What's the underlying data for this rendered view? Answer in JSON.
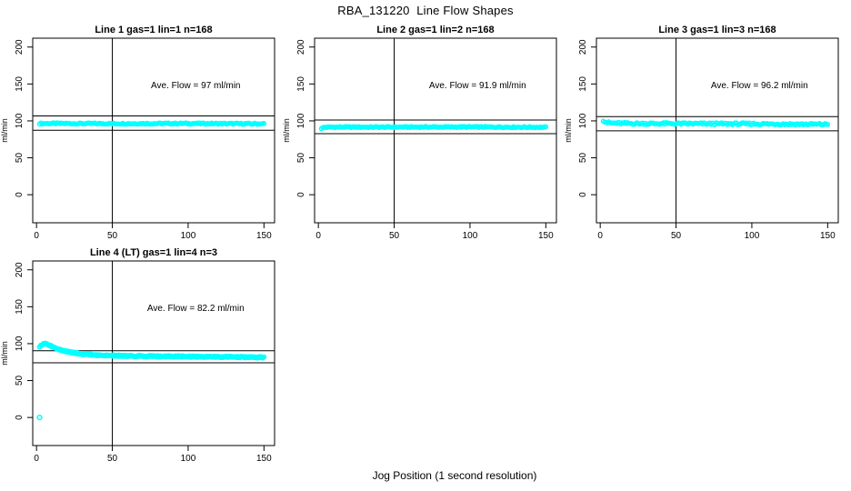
{
  "page": {
    "title": "RBA_131220  Line Flow Shapes",
    "xlabel": "Jog Position (1 second resolution)"
  },
  "colors": {
    "points": "#00ffff",
    "axis": "#000000",
    "text": "#000000",
    "background": "#ffffff"
  },
  "chart_data": [
    {
      "type": "scatter",
      "title": "Line 1 gas=1 lin=1 n=168",
      "line": 1,
      "gas": 1,
      "lin": 1,
      "n": 168,
      "annotation": "Ave. Flow =  97  ml/min",
      "avg_flow_ml_min": 97,
      "ylabel": "ml/min",
      "xticks": [
        0,
        50,
        100,
        150
      ],
      "yticks": [
        0,
        50,
        100,
        150,
        200
      ],
      "xlim": [
        -2.5,
        157
      ],
      "ylim": [
        -38,
        212
      ],
      "vline_x": 50,
      "hlines_y": [
        106.7,
        87.3
      ],
      "annotation_xy": [
        105,
        144
      ],
      "band_profile": [
        [
          2,
          96.5
        ],
        [
          10,
          96.5
        ],
        [
          50,
          96.3
        ],
        [
          100,
          96.5
        ],
        [
          150,
          96.0
        ]
      ],
      "outliers": [],
      "point_count": 168,
      "runs": 1,
      "jitter": 0.9,
      "grid_position": [
        0,
        0
      ]
    },
    {
      "type": "scatter",
      "title": "Line 2 gas=1 lin=2 n=168",
      "line": 2,
      "gas": 1,
      "lin": 2,
      "n": 168,
      "annotation": "Ave. Flow =  91.9  ml/min",
      "avg_flow_ml_min": 91.9,
      "ylabel": "ml/min",
      "xticks": [
        0,
        50,
        100,
        150
      ],
      "yticks": [
        0,
        50,
        100,
        150,
        200
      ],
      "xlim": [
        -2.5,
        157
      ],
      "ylim": [
        -38,
        212
      ],
      "vline_x": 50,
      "hlines_y": [
        101.1,
        82.7
      ],
      "annotation_xy": [
        105,
        144
      ],
      "band_profile": [
        [
          2,
          90.0
        ],
        [
          4,
          91.3
        ],
        [
          10,
          91.6
        ],
        [
          50,
          91.6
        ],
        [
          100,
          91.8
        ],
        [
          150,
          91.3
        ]
      ],
      "outliers": [],
      "point_count": 168,
      "runs": 1,
      "jitter": 0.8,
      "grid_position": [
        0,
        1
      ]
    },
    {
      "type": "scatter",
      "title": "Line 3 gas=1 lin=3 n=168",
      "line": 3,
      "gas": 1,
      "lin": 3,
      "n": 168,
      "annotation": "Ave. Flow =  96.2  ml/min",
      "avg_flow_ml_min": 96.2,
      "ylabel": "ml/min",
      "xticks": [
        0,
        50,
        100,
        150
      ],
      "yticks": [
        0,
        50,
        100,
        150,
        200
      ],
      "xlim": [
        -2.5,
        157
      ],
      "ylim": [
        -38,
        212
      ],
      "vline_x": 50,
      "hlines_y": [
        105.8,
        86.6
      ],
      "annotation_xy": [
        105,
        144
      ],
      "band_profile": [
        [
          2,
          101.0
        ],
        [
          4,
          98.0
        ],
        [
          8,
          97.0
        ],
        [
          20,
          96.5
        ],
        [
          60,
          96.2
        ],
        [
          100,
          96.0
        ],
        [
          150,
          95.3
        ]
      ],
      "outliers": [],
      "point_count": 168,
      "runs": 1,
      "jitter": 1.4,
      "grid_position": [
        0,
        2
      ]
    },
    {
      "type": "scatter",
      "title": "Line 4 (LT) gas=1 lin=4 n=3",
      "line": 4,
      "gas": 1,
      "lin": 4,
      "n": 3,
      "annotation": "Ave. Flow =  82.2  ml/min",
      "avg_flow_ml_min": 82.2,
      "ylabel": "ml/min",
      "xticks": [
        0,
        50,
        100,
        150
      ],
      "yticks": [
        0,
        50,
        100,
        150,
        200
      ],
      "xlim": [
        -2.5,
        157
      ],
      "ylim": [
        -38,
        212
      ],
      "vline_x": 50,
      "hlines_y": [
        90.4,
        74.0
      ],
      "annotation_xy": [
        105,
        144
      ],
      "band_profile": [
        [
          2,
          96.0
        ],
        [
          4,
          99.0
        ],
        [
          6,
          100.0
        ],
        [
          9,
          97.5
        ],
        [
          12,
          94.5
        ],
        [
          16,
          91.5
        ],
        [
          20,
          89.5
        ],
        [
          25,
          87.5
        ],
        [
          30,
          86.0
        ],
        [
          40,
          84.5
        ],
        [
          55,
          83.5
        ],
        [
          75,
          83.0
        ],
        [
          100,
          82.5
        ],
        [
          125,
          82.0
        ],
        [
          150,
          81.5
        ]
      ],
      "outliers": [
        [
          2,
          0
        ]
      ],
      "point_count": 168,
      "runs": 3,
      "jitter": 1.0,
      "grid_position": [
        1,
        0
      ]
    }
  ]
}
